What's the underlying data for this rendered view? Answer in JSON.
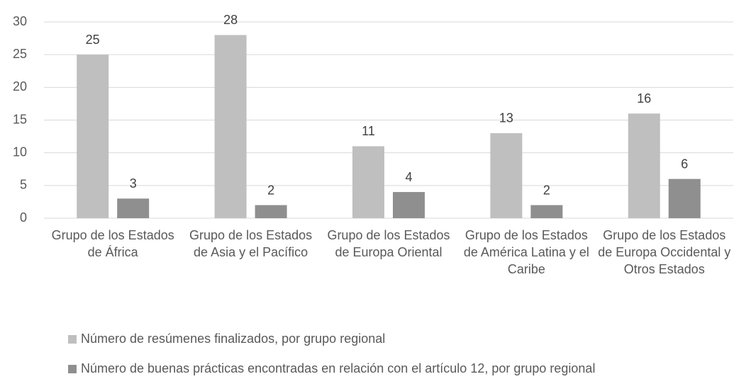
{
  "chart_data": {
    "type": "bar",
    "categories": [
      "Grupo de los Estados de África",
      "Grupo de los Estados de Asia y el Pacífico",
      "Grupo de los Estados de Europa Oriental",
      "Grupo de los Estados de América Latina y el Caribe",
      "Grupo de los Estados de Europa Occidental y Otros Estados"
    ],
    "series": [
      {
        "name": "Número de resúmenes finalizados, por grupo regional",
        "color": "#bfbfbf",
        "values": [
          25,
          28,
          11,
          13,
          16
        ]
      },
      {
        "name": "Número de buenas prácticas encontradas en relación con el artículo 12, por grupo regional",
        "color": "#8f8f8f",
        "values": [
          3,
          2,
          4,
          2,
          6
        ]
      }
    ],
    "ylim": [
      0,
      30
    ],
    "yticks": [
      0,
      5,
      10,
      15,
      20,
      25,
      30
    ],
    "grid": true,
    "legend": "bottom"
  }
}
